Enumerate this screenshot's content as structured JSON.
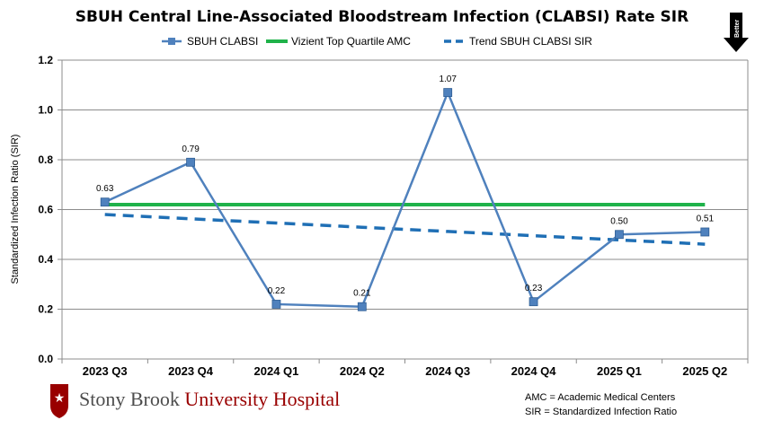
{
  "chart_data": {
    "type": "line",
    "title": "SBUH Central Line-Associated Bloodstream Infection (CLABSI) Rate SIR",
    "xlabel": "",
    "ylabel": "Standardized Infection Ratio (SIR)",
    "ylim": [
      0.0,
      1.2
    ],
    "yticks": [
      "0.0",
      "0.2",
      "0.4",
      "0.6",
      "0.8",
      "1.0",
      "1.2"
    ],
    "grid": true,
    "legend_position": "top",
    "categories": [
      "2023 Q3",
      "2023 Q4",
      "2024 Q1",
      "2024 Q2",
      "2024 Q3",
      "2024 Q4",
      "2025 Q1",
      "2025 Q2"
    ],
    "series": [
      {
        "name": "SBUH CLABSI",
        "color": "#4f81bd",
        "style": "solid-with-square-markers",
        "values": [
          0.63,
          0.79,
          0.22,
          0.21,
          1.07,
          0.23,
          0.5,
          0.51
        ],
        "labels": [
          "0.63",
          "0.79",
          "0.22",
          "0.21",
          "1.07",
          "0.23",
          "0.50",
          "0.51"
        ]
      },
      {
        "name": "Vizient Top Quartile AMC",
        "color": "#1fb24a",
        "style": "solid",
        "values": [
          0.62,
          0.62,
          0.62,
          0.62,
          0.62,
          0.62,
          0.62,
          0.62
        ]
      },
      {
        "name": "Trend SBUH CLABSI SIR",
        "color": "#1f6fb5",
        "style": "dashed",
        "values": [
          0.58,
          0.563,
          0.546,
          0.529,
          0.512,
          0.495,
          0.478,
          0.461
        ]
      }
    ]
  },
  "badge": {
    "label": "Better",
    "icon": "down-arrow-icon"
  },
  "logo": {
    "icon": "star-shield-icon",
    "name_part1": "Stony Brook ",
    "name_part2": "University Hospital",
    "color_primary": "#4d4d4d",
    "color_accent": "#990000"
  },
  "footnotes": [
    "AMC = Academic Medical Centers",
    "SIR = Standardized Infection Ratio"
  ]
}
